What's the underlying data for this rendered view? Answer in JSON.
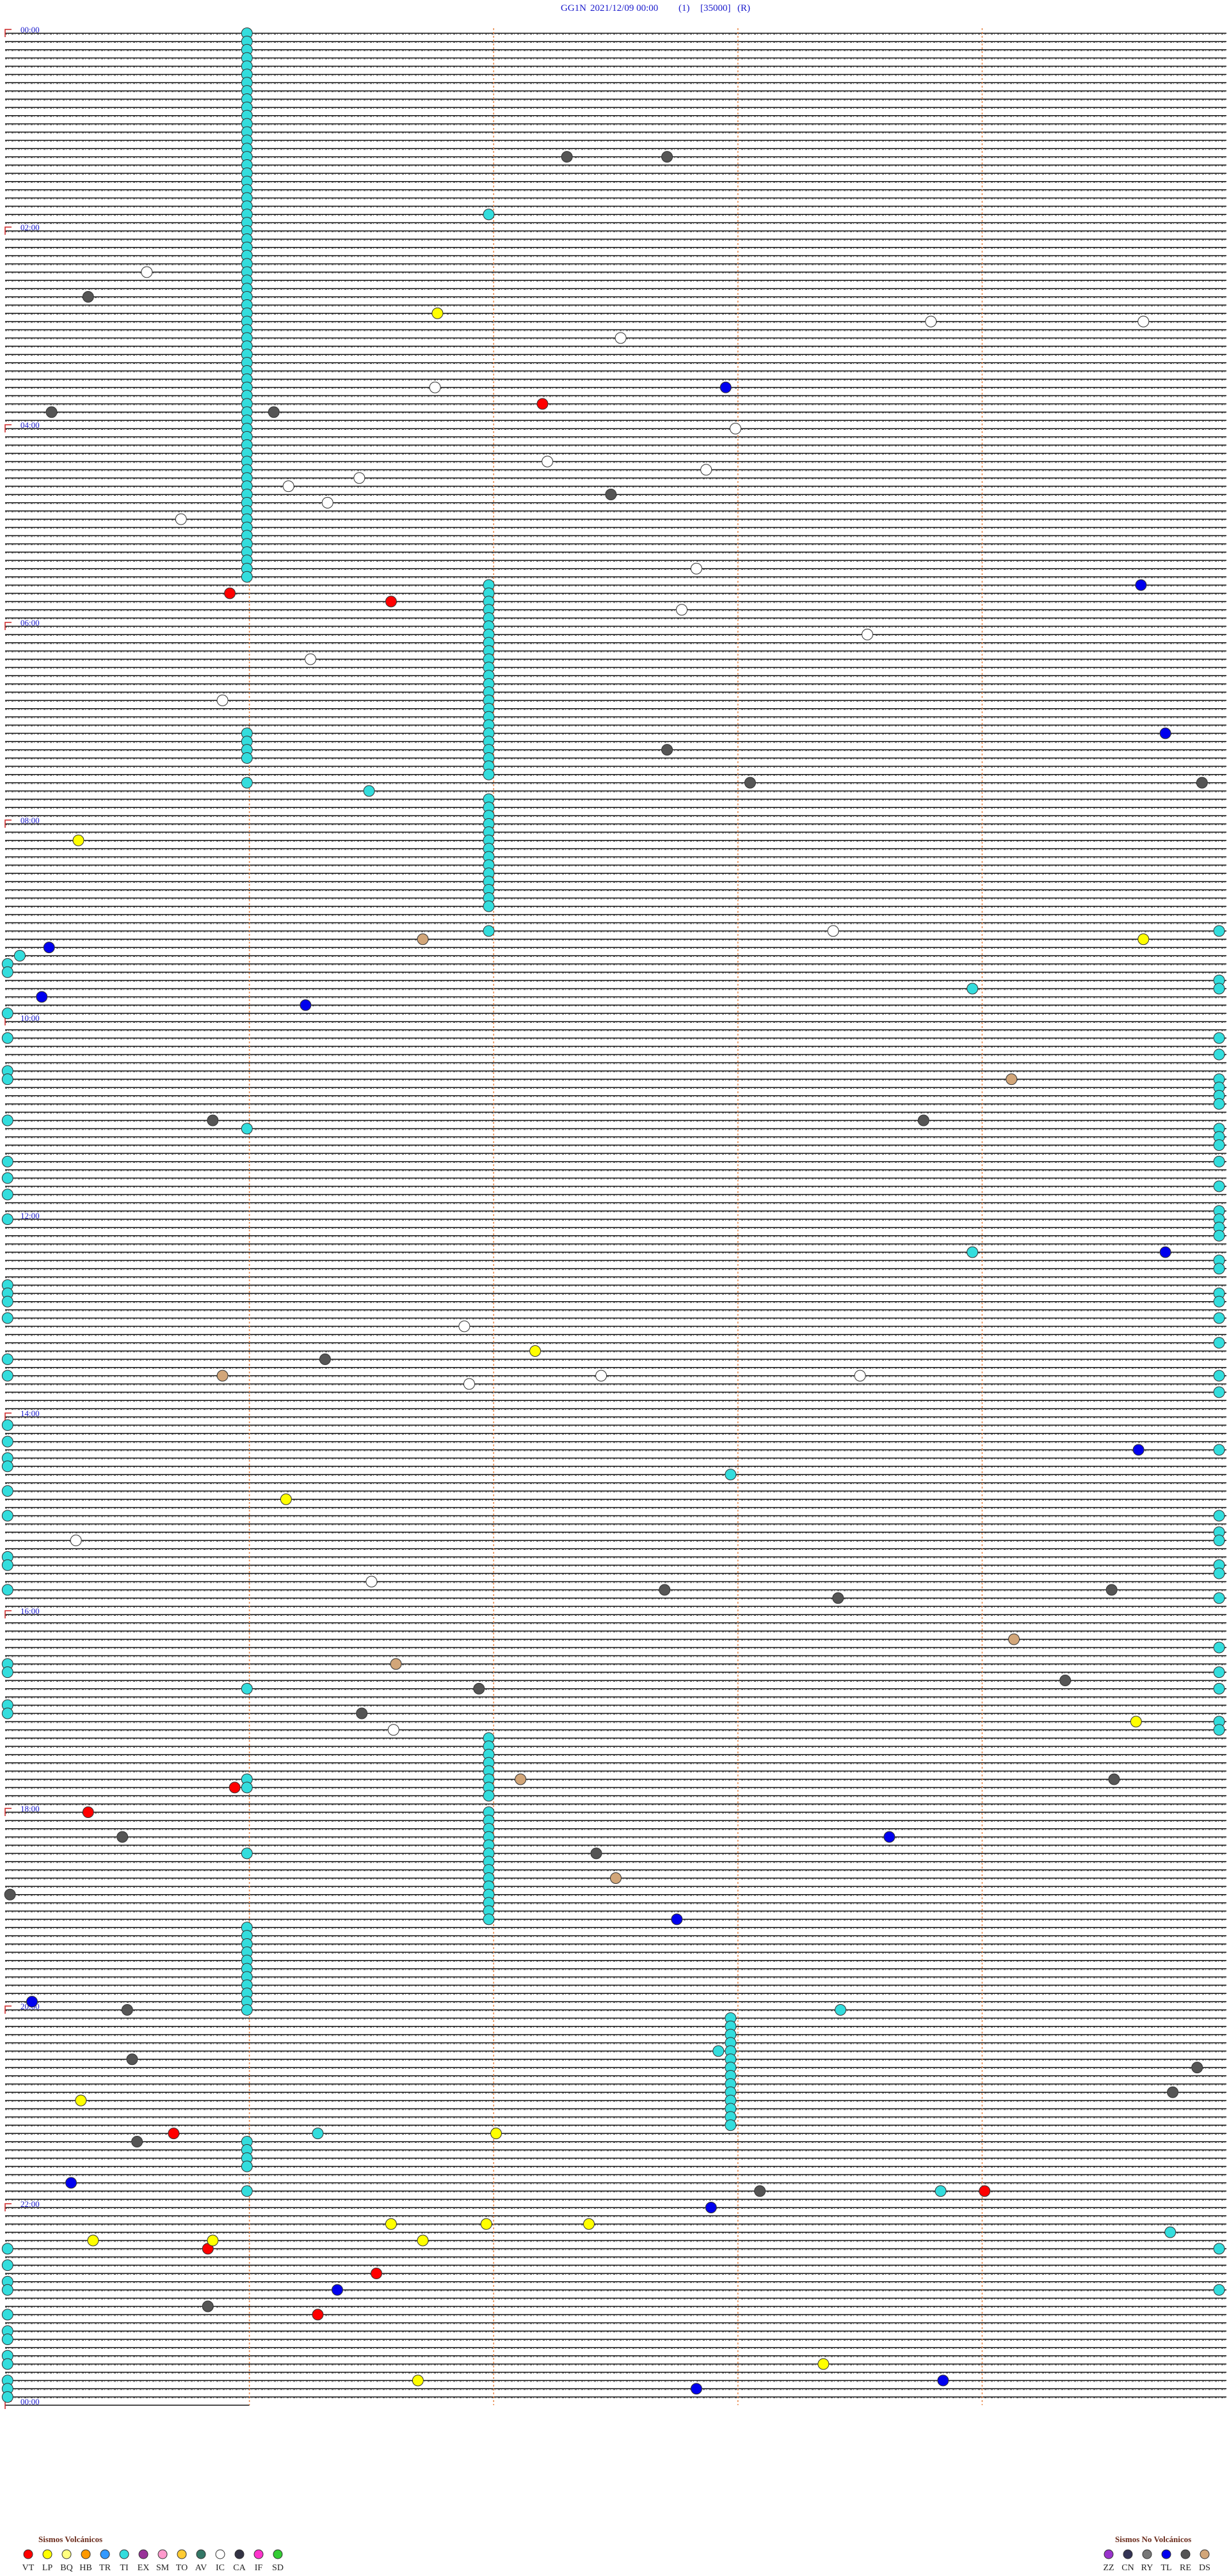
{
  "chart_data": {
    "type": "helicorder",
    "station": "GG1N",
    "start": "2021/12/09 00:00",
    "channel": "(1)",
    "gain": "[35000]",
    "mode": "(R)",
    "xlim": [
      0,
      5
    ],
    "minute_lines": [
      1,
      2,
      3,
      4
    ],
    "row_count": 288,
    "hour_labels": [
      {
        "row": 0,
        "label": "00:00"
      },
      {
        "row": 24,
        "label": "02:00"
      },
      {
        "row": 48,
        "label": "04:00"
      },
      {
        "row": 72,
        "label": "06:00"
      },
      {
        "row": 96,
        "label": "08:00"
      },
      {
        "row": 120,
        "label": "10:00"
      },
      {
        "row": 144,
        "label": "12:00"
      },
      {
        "row": 168,
        "label": "14:00"
      },
      {
        "row": 192,
        "label": "16:00"
      },
      {
        "row": 216,
        "label": "18:00"
      },
      {
        "row": 240,
        "label": "20:00"
      },
      {
        "row": 264,
        "label": "22:00"
      },
      {
        "row": 288,
        "label": "00:00"
      }
    ],
    "legend": [
      {
        "title": "Sismos Volcánicos",
        "codes": [
          "VT",
          "LP",
          "BQ",
          "HB",
          "TR",
          "TI",
          "EX",
          "SM",
          "TO",
          "AV",
          "IC",
          "CA",
          "IF",
          "SD"
        ],
        "colors": [
          "#ff0000",
          "#ffff00",
          "#ffff80",
          "#ff9900",
          "#3399ff",
          "#33dddd",
          "#993399",
          "#ff99cc",
          "#ffcc33",
          "#337766",
          "#ffffff",
          "#333344",
          "#ff33cc",
          "#33cc33"
        ]
      },
      {
        "title": "Sismos No Volcánicos",
        "codes": [
          "ZZ",
          "CN",
          "RY",
          "TL",
          "RE",
          "DS"
        ],
        "colors": [
          "#9933cc",
          "#333355",
          "#777777",
          "#0000ee",
          "#555555",
          "#d2a679"
        ]
      }
    ],
    "events": [
      {
        "code": "TI",
        "minute": 0.99,
        "rows": [
          0,
          1,
          2,
          3,
          4,
          5,
          6,
          7,
          8,
          9,
          10,
          11,
          12,
          13,
          14,
          15,
          16,
          17,
          18,
          19,
          20,
          21,
          22,
          23,
          24,
          25,
          26,
          27,
          28,
          29,
          30,
          31,
          32,
          33,
          34,
          35,
          36,
          37,
          38,
          39,
          40,
          41,
          42,
          43,
          44,
          45,
          46,
          47,
          48,
          49,
          50,
          51,
          52,
          53,
          54,
          55,
          56,
          57,
          58,
          59,
          60,
          61,
          62,
          63,
          64,
          65,
          66
        ]
      },
      {
        "code": "TI",
        "minute": 0.99,
        "rows": [
          85,
          86,
          87,
          88,
          91,
          212,
          213,
          230,
          231,
          232,
          233,
          234,
          235,
          236,
          237,
          238,
          239,
          240,
          256,
          257,
          258,
          259,
          262
        ]
      },
      {
        "code": "TI",
        "minute": 1.98,
        "rows": [
          67,
          68,
          69,
          70,
          71,
          72,
          73,
          74,
          75,
          76,
          77,
          78,
          79,
          80,
          81,
          82,
          83,
          84,
          85,
          86,
          87,
          88,
          89,
          90,
          93,
          94,
          95,
          96,
          97,
          98,
          99,
          100,
          101,
          102,
          103,
          104,
          105,
          106,
          109,
          207,
          208,
          209,
          210,
          211,
          212,
          213,
          214,
          216,
          217,
          218,
          219,
          220,
          221,
          222,
          223,
          224,
          225,
          226,
          227,
          228,
          229
        ]
      },
      {
        "code": "TI",
        "minute": 2.97,
        "rows": [
          241,
          242,
          243,
          244,
          245,
          246,
          247,
          248,
          249,
          250,
          251,
          252,
          253,
          254
        ]
      },
      {
        "code": "TI",
        "minute": 4.97,
        "rows": [
          109,
          115,
          116,
          122,
          124,
          127,
          128,
          129,
          130,
          133,
          134,
          135,
          137,
          140,
          143,
          144,
          145,
          146,
          149,
          150,
          153,
          154,
          156,
          159,
          163,
          165,
          172,
          180,
          182,
          183,
          186,
          187,
          190,
          196,
          199,
          201,
          205,
          206,
          269,
          274
        ]
      },
      {
        "code": "TI",
        "minute": 0.01,
        "rows": [
          113,
          114,
          119,
          122,
          126,
          127,
          132,
          137,
          139,
          141,
          144,
          152,
          153,
          154,
          156,
          161,
          163,
          169,
          171,
          173,
          174,
          177,
          180,
          185,
          186,
          189,
          198,
          199,
          203,
          204,
          269,
          271,
          273,
          274,
          277,
          279,
          280,
          282,
          283,
          285,
          286,
          287
        ]
      },
      {
        "code": "TI",
        "rows": [
          22,
          92,
          112,
          116,
          133,
          148,
          175,
          201,
          221,
          240,
          245,
          255,
          262,
          267
        ],
        "minutes": [
          1.98,
          1.49,
          0.06,
          3.96,
          0.99,
          3.96,
          2.97,
          0.99,
          0.99,
          3.42,
          2.92,
          1.28,
          3.83,
          4.77
        ]
      },
      {
        "code": "RE",
        "rows": [
          15,
          15,
          32,
          46,
          46,
          56,
          87,
          91,
          91,
          132,
          132,
          161,
          189,
          190,
          189,
          201,
          200,
          204,
          212,
          219,
          221,
          226,
          240,
          246,
          247,
          250,
          256,
          262,
          276
        ],
        "minutes": [
          2.3,
          2.71,
          0.34,
          0.19,
          1.1,
          2.48,
          2.71,
          3.05,
          4.9,
          0.85,
          3.76,
          1.31,
          2.7,
          3.41,
          4.53,
          1.94,
          4.34,
          1.46,
          4.54,
          0.48,
          2.42,
          0.02,
          0.5,
          0.52,
          4.88,
          4.78,
          0.54,
          3.09,
          0.83
        ]
      },
      {
        "code": "IC",
        "rows": [
          29,
          37,
          35,
          35,
          43,
          48,
          52,
          53,
          54,
          55,
          57,
          59,
          65,
          70,
          73,
          76,
          81,
          109,
          157,
          164,
          163,
          163,
          183,
          188,
          206
        ],
        "minutes": [
          0.58,
          2.52,
          3.79,
          4.66,
          1.76,
          2.99,
          2.22,
          2.87,
          1.45,
          1.16,
          1.32,
          0.72,
          2.83,
          2.77,
          3.53,
          1.25,
          0.89,
          3.39,
          1.88,
          1.9,
          2.44,
          3.5,
          0.29,
          1.5,
          1.59
        ]
      },
      {
        "code": "TL",
        "rows": [
          43,
          67,
          85,
          111,
          117,
          118,
          148,
          172,
          219,
          229,
          239,
          261,
          264,
          274,
          285,
          286
        ],
        "minutes": [
          2.95,
          4.65,
          4.75,
          0.18,
          0.15,
          1.23,
          4.75,
          4.64,
          3.62,
          2.75,
          0.11,
          0.27,
          2.89,
          1.36,
          3.84,
          2.83
        ]
      },
      {
        "code": "VT",
        "rows": [
          45,
          68,
          69,
          213,
          216,
          255,
          262,
          272,
          269,
          277
        ],
        "minutes": [
          2.2,
          0.92,
          1.58,
          0.94,
          0.34,
          0.69,
          4.01,
          1.52,
          0.83,
          1.28
        ]
      },
      {
        "code": "LP",
        "rows": [
          34,
          98,
          110,
          160,
          178,
          205,
          251,
          255,
          266,
          266,
          266,
          268,
          268,
          268,
          283,
          285
        ],
        "minutes": [
          1.77,
          0.3,
          4.66,
          2.17,
          1.15,
          4.63,
          0.31,
          2.01,
          1.58,
          1.97,
          2.39,
          0.36,
          1.71,
          0.85,
          3.35,
          1.69
        ]
      },
      {
        "code": "DS",
        "rows": [
          110,
          127,
          163,
          195,
          198,
          212,
          224
        ],
        "minutes": [
          1.71,
          4.12,
          0.89,
          4.13,
          1.6,
          2.11,
          2.5
        ]
      }
    ]
  }
}
